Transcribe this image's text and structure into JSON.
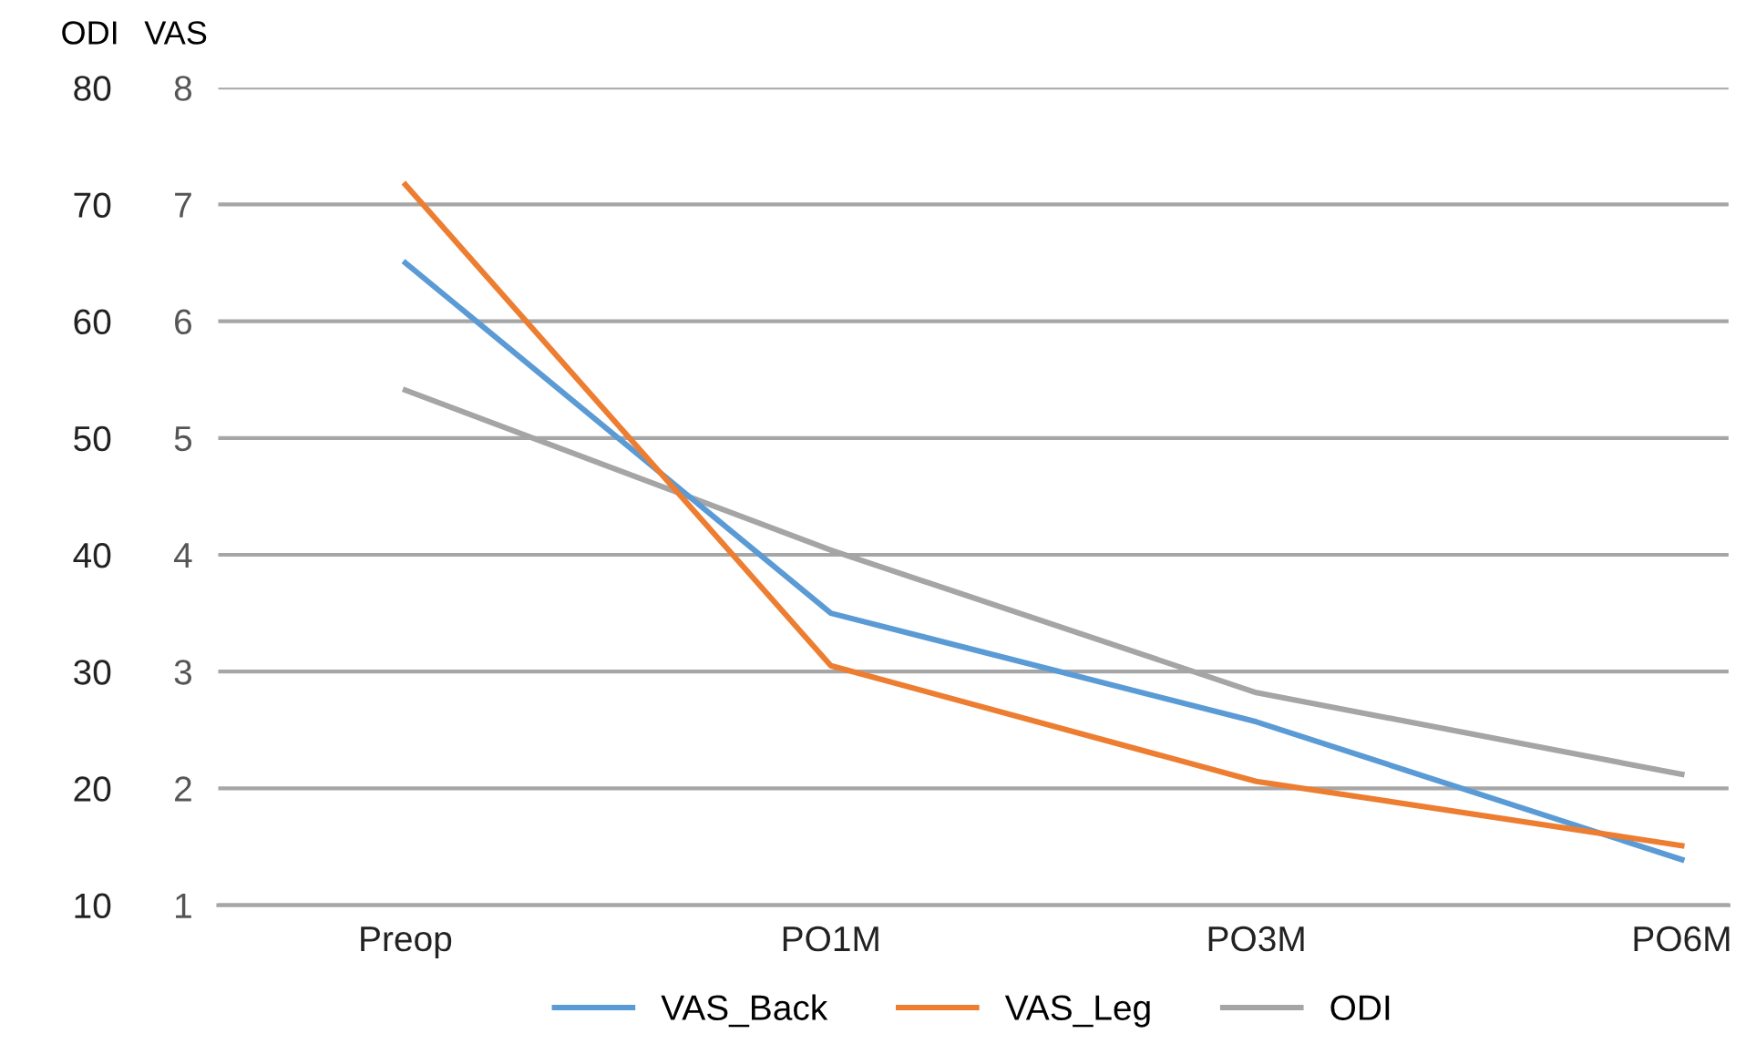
{
  "chart_data": {
    "type": "line",
    "ylabel": "ODI",
    "y2label": "VAS",
    "categories": [
      "Preop",
      "PO1M",
      "PO3M",
      "PO6M"
    ],
    "series": [
      {
        "name": "VAS_Back",
        "color": "#5b9bd5",
        "axis": "y2",
        "values": [
          6.5,
          3.5,
          2.57,
          1.39
        ]
      },
      {
        "name": "VAS_Leg",
        "color": "#ed7d31",
        "axis": "y2",
        "values": [
          7.17,
          3.05,
          2.06,
          1.51
        ]
      },
      {
        "name": "ODI",
        "color": "#a5a5a5",
        "axis": "y",
        "values": [
          54.1,
          40.4,
          28.2,
          21.2
        ]
      }
    ],
    "ylim": [
      10,
      80
    ],
    "yticks": [
      10,
      20,
      30,
      40,
      50,
      60,
      70,
      80
    ],
    "y2lim": [
      1,
      8
    ],
    "y2ticks": [
      1,
      2,
      3,
      4,
      5,
      6,
      7,
      8
    ],
    "grid": "y",
    "legend": "bottom",
    "marker": "none",
    "line_style": "solid"
  }
}
